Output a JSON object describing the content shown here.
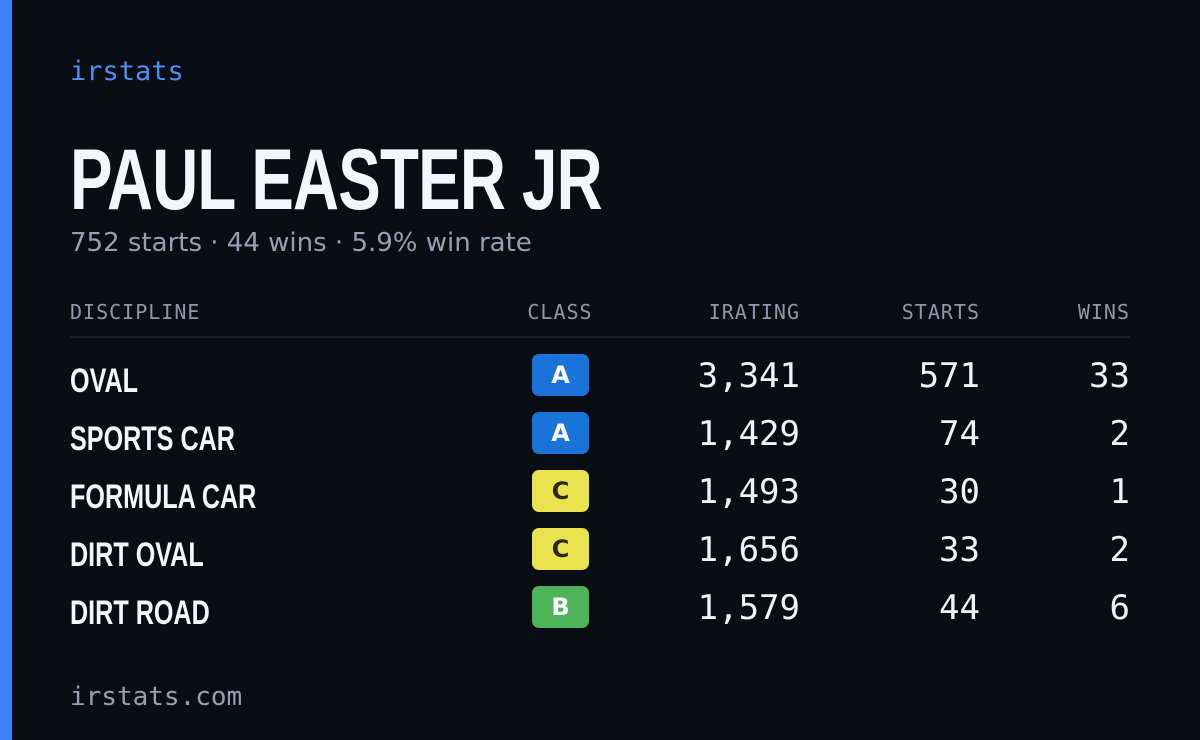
{
  "brand": "irstats",
  "title": "PAUL EASTER JR",
  "subtitle": "752 starts · 44 wins · 5.9% win rate",
  "table": {
    "headers": [
      "DISCIPLINE",
      "CLASS",
      "IRATING",
      "STARTS",
      "WINS"
    ],
    "rows": [
      {
        "discipline": "OVAL",
        "class": "A",
        "class_color": "#1a73d9",
        "class_text_color": "#ffffff",
        "irating": "3,341",
        "starts": 571,
        "wins": 33
      },
      {
        "discipline": "SPORTS CAR",
        "class": "A",
        "class_color": "#1a73d9",
        "class_text_color": "#ffffff",
        "irating": "1,429",
        "starts": 74,
        "wins": 2
      },
      {
        "discipline": "FORMULA CAR",
        "class": "C",
        "class_color": "#ebe24f",
        "class_text_color": "#2a2a1a",
        "irating": "1,493",
        "starts": 30,
        "wins": 1
      },
      {
        "discipline": "DIRT OVAL",
        "class": "C",
        "class_color": "#ebe24f",
        "class_text_color": "#2a2a1a",
        "irating": "1,656",
        "starts": 33,
        "wins": 2
      },
      {
        "discipline": "DIRT ROAD",
        "class": "B",
        "class_color": "#4fb35a",
        "class_text_color": "#ffffff",
        "irating": "1,579",
        "starts": 44,
        "wins": 6
      }
    ]
  },
  "footer": "irstats.com"
}
